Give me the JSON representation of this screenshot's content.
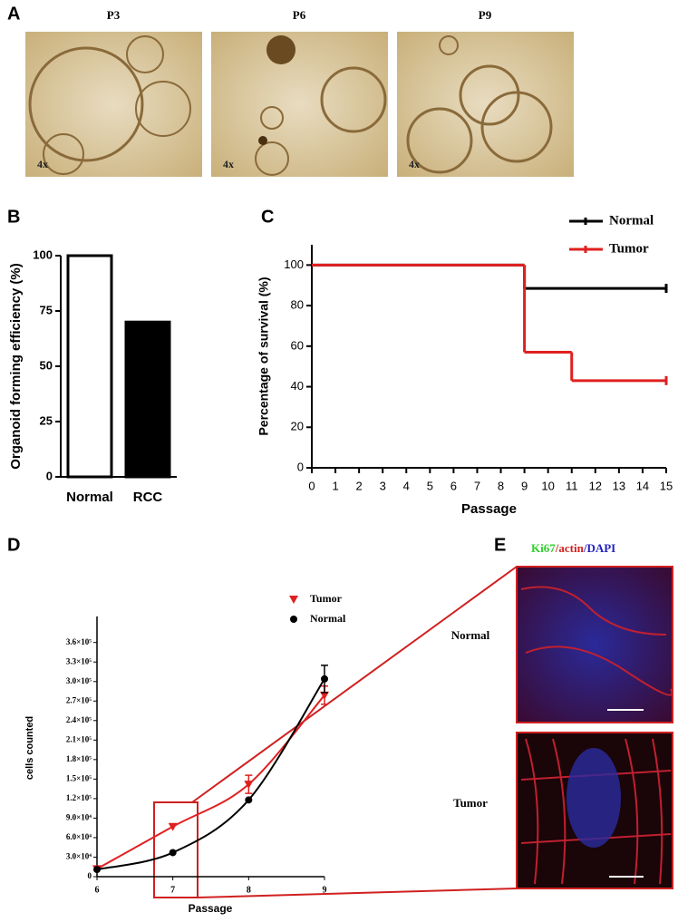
{
  "figure": {
    "panels": [
      "A",
      "B",
      "C",
      "D",
      "E"
    ],
    "a_labels": [
      "P3",
      "P6",
      "P9"
    ],
    "magnification": "4x",
    "e_title": [
      "Ki67",
      "/",
      "actin",
      "/",
      "DAPI"
    ],
    "e_rows": [
      "Normal",
      "Tumor"
    ]
  },
  "chart_data": [
    {
      "type": "bar",
      "ylabel": "Organoid forming efficiency (%)",
      "categories": [
        "Normal",
        "RCC"
      ],
      "values": [
        100,
        70
      ],
      "colors": [
        "#ffffff",
        "#000000"
      ],
      "ylim": [
        0,
        100
      ],
      "yticks": [
        0,
        25,
        50,
        75,
        100
      ]
    },
    {
      "type": "step",
      "xlabel": "Passage",
      "ylabel": "Percentage of survival (%)",
      "xlim": [
        0,
        15
      ],
      "ylim": [
        0,
        110
      ],
      "xticks": [
        0,
        1,
        2,
        3,
        4,
        5,
        6,
        7,
        8,
        9,
        10,
        11,
        12,
        13,
        14,
        15
      ],
      "yticks": [
        0,
        20,
        40,
        60,
        80,
        100
      ],
      "legend": "top-right",
      "series": [
        {
          "name": "Normal",
          "color": "#000000",
          "x": [
            0,
            9,
            15
          ],
          "values": [
            100,
            88.5,
            88.5
          ]
        },
        {
          "name": "Tumor",
          "color": "#e02020",
          "x": [
            0,
            9,
            11,
            15
          ],
          "values": [
            100,
            57,
            43,
            43
          ]
        }
      ]
    },
    {
      "type": "scatter",
      "xlabel": "Passage",
      "ylabel": "cells counted",
      "xlim": [
        6,
        9
      ],
      "ylim": [
        0,
        400000
      ],
      "xticks": [
        6,
        7,
        8,
        9
      ],
      "yticks": [
        0,
        {
          "value": 30000,
          "label": "3.0×10⁴"
        },
        {
          "value": 60000,
          "label": "6.0×10⁴"
        },
        {
          "value": 90000,
          "label": "9.0×10⁴"
        },
        {
          "value": 120000,
          "label": "1.2×10⁵"
        },
        {
          "value": 150000,
          "label": "1.5×10⁵"
        },
        {
          "value": 180000,
          "label": "1.8×10⁵"
        },
        {
          "value": 210000,
          "label": "2.1×10⁵"
        },
        {
          "value": 240000,
          "label": "2.4×10⁵"
        },
        {
          "value": 270000,
          "label": "2.7×10⁵"
        },
        {
          "value": 300000,
          "label": "3.0×10⁵"
        },
        {
          "value": 330000,
          "label": "3.3×10⁵"
        },
        {
          "value": 360000,
          "label": "3.6×10⁵"
        }
      ],
      "x": [
        6,
        7,
        8,
        9
      ],
      "legend": "top",
      "series": [
        {
          "name": "Tumor",
          "color": "#e02020",
          "marker": "triangle",
          "values": [
            12000,
            77000,
            142000,
            279000
          ],
          "errors": [
            null,
            null,
            14000,
            14000
          ]
        },
        {
          "name": "Normal",
          "color": "#000000",
          "marker": "circle",
          "values": [
            11000,
            37000,
            118000,
            304000
          ],
          "errors": [
            null,
            null,
            null,
            21000
          ]
        }
      ]
    }
  ]
}
